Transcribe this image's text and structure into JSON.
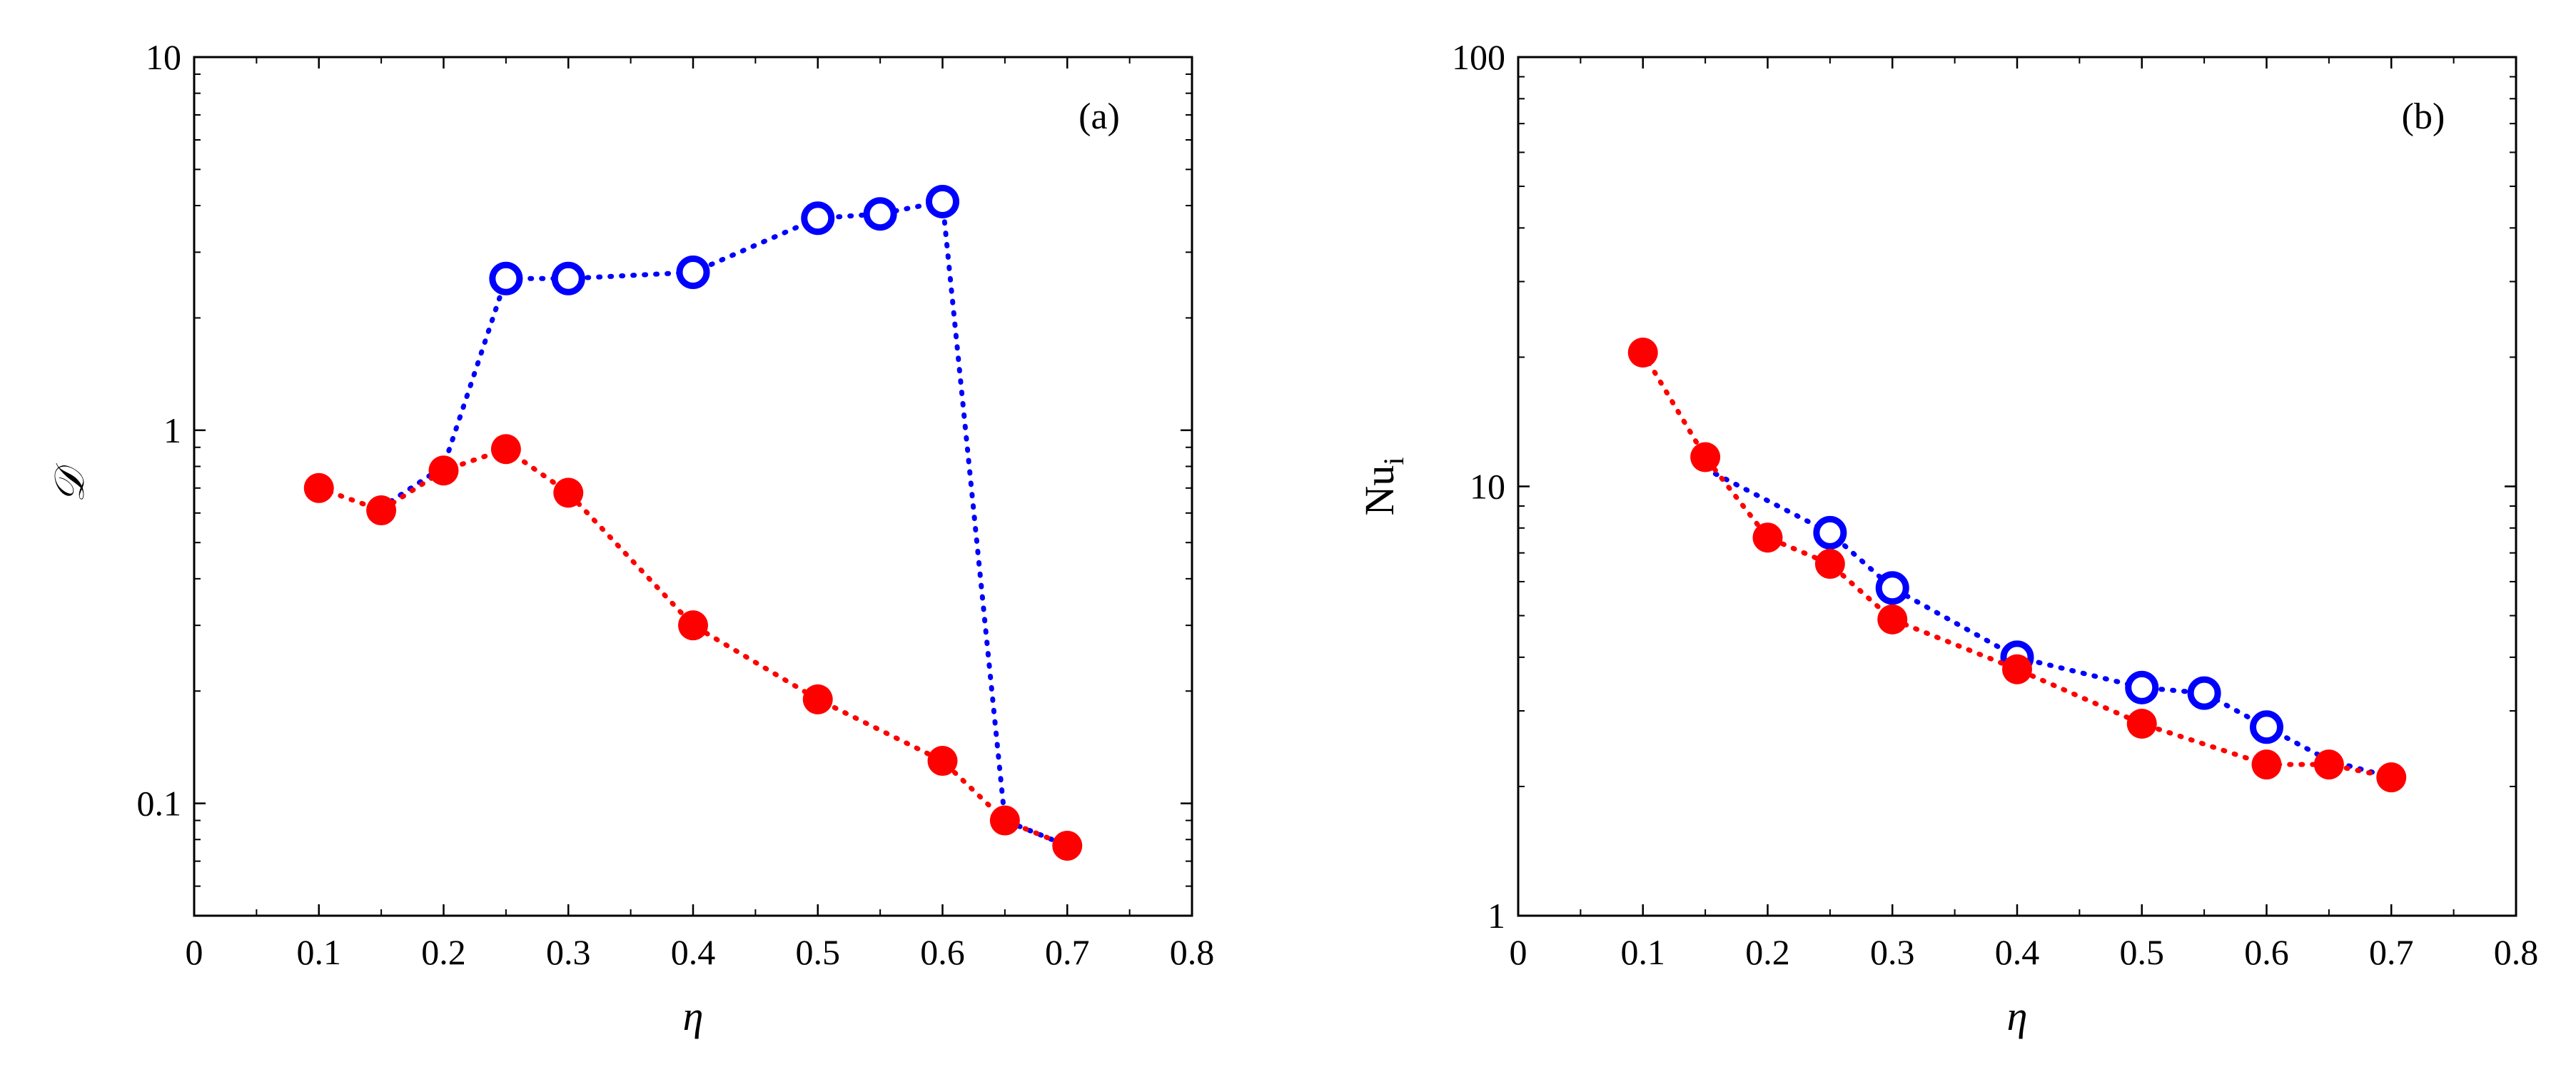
{
  "colors": {
    "blue": "#0000ff",
    "red": "#ff0000",
    "axis": "#000000"
  },
  "chart_data": [
    {
      "type": "line",
      "panel_label": "(a)",
      "ylabel": "𝒟",
      "ylabel_style": "script",
      "xlabel": "η",
      "xscale": "linear",
      "yscale": "log",
      "xlim": [
        0,
        0.8
      ],
      "ylim": [
        0.05,
        10
      ],
      "xticks": [
        {
          "value": 0,
          "label": "0"
        },
        {
          "value": 0.1,
          "label": "0.1"
        },
        {
          "value": 0.2,
          "label": "0.2"
        },
        {
          "value": 0.3,
          "label": "0.3"
        },
        {
          "value": 0.4,
          "label": "0.4"
        },
        {
          "value": 0.5,
          "label": "0.5"
        },
        {
          "value": 0.6,
          "label": "0.6"
        },
        {
          "value": 0.7,
          "label": "0.7"
        },
        {
          "value": 0.8,
          "label": "0.8"
        }
      ],
      "yticks": [
        {
          "value": 0.1,
          "label": "0.1"
        },
        {
          "value": 1,
          "label": "1"
        },
        {
          "value": 10,
          "label": "10"
        }
      ],
      "grid": false,
      "series": [
        {
          "name": "blue-open-circles",
          "color": "#0000ff",
          "marker": "open-circle",
          "line": "dotted",
          "points": [
            [
              0.15,
              0.62
            ],
            [
              0.2,
              0.8
            ],
            [
              0.25,
              2.55
            ],
            [
              0.3,
              2.55
            ],
            [
              0.4,
              2.65
            ],
            [
              0.5,
              3.7
            ],
            [
              0.55,
              3.8
            ],
            [
              0.6,
              4.1
            ],
            [
              0.65,
              0.09
            ],
            [
              0.7,
              0.077
            ]
          ],
          "marker_indices": [
            2,
            3,
            4,
            5,
            6,
            7
          ]
        },
        {
          "name": "red-filled-circles",
          "color": "#ff0000",
          "marker": "filled-circle",
          "line": "dotted",
          "points": [
            [
              0.1,
              0.7
            ],
            [
              0.15,
              0.61
            ],
            [
              0.2,
              0.78
            ],
            [
              0.25,
              0.89
            ],
            [
              0.3,
              0.68
            ],
            [
              0.4,
              0.3
            ],
            [
              0.5,
              0.19
            ],
            [
              0.6,
              0.13
            ],
            [
              0.65,
              0.09
            ],
            [
              0.7,
              0.077
            ]
          ],
          "marker_indices": [
            0,
            1,
            2,
            3,
            4,
            5,
            6,
            7,
            8,
            9
          ]
        }
      ]
    },
    {
      "type": "line",
      "panel_label": "(b)",
      "ylabel": "Nu",
      "ylabel_sub": "i",
      "xlabel": "η",
      "xscale": "linear",
      "yscale": "log",
      "xlim": [
        0,
        0.8
      ],
      "ylim": [
        1,
        100
      ],
      "xticks": [
        {
          "value": 0,
          "label": "0"
        },
        {
          "value": 0.1,
          "label": "0.1"
        },
        {
          "value": 0.2,
          "label": "0.2"
        },
        {
          "value": 0.3,
          "label": "0.3"
        },
        {
          "value": 0.4,
          "label": "0.4"
        },
        {
          "value": 0.5,
          "label": "0.5"
        },
        {
          "value": 0.6,
          "label": "0.6"
        },
        {
          "value": 0.7,
          "label": "0.7"
        },
        {
          "value": 0.8,
          "label": "0.8"
        }
      ],
      "yticks": [
        {
          "value": 1,
          "label": "1"
        },
        {
          "value": 10,
          "label": "10"
        },
        {
          "value": 100,
          "label": "100"
        }
      ],
      "grid": false,
      "series": [
        {
          "name": "blue-open-circles",
          "color": "#0000ff",
          "marker": "open-circle",
          "line": "dotted",
          "points": [
            [
              0.15,
              11.0
            ],
            [
              0.25,
              7.8
            ],
            [
              0.3,
              5.8
            ],
            [
              0.4,
              4.0
            ],
            [
              0.5,
              3.4
            ],
            [
              0.55,
              3.3
            ],
            [
              0.6,
              2.75
            ],
            [
              0.65,
              2.3
            ],
            [
              0.7,
              2.1
            ]
          ],
          "marker_indices": [
            1,
            2,
            3,
            4,
            5,
            6
          ]
        },
        {
          "name": "red-filled-circles",
          "color": "#ff0000",
          "marker": "filled-circle",
          "line": "dotted",
          "points": [
            [
              0.1,
              20.5
            ],
            [
              0.15,
              11.7
            ],
            [
              0.2,
              7.6
            ],
            [
              0.25,
              6.6
            ],
            [
              0.3,
              4.9
            ],
            [
              0.4,
              3.75
            ],
            [
              0.5,
              2.8
            ],
            [
              0.6,
              2.25
            ],
            [
              0.65,
              2.25
            ],
            [
              0.7,
              2.1
            ]
          ],
          "marker_indices": [
            0,
            1,
            2,
            3,
            4,
            5,
            6,
            7,
            8,
            9
          ]
        }
      ]
    }
  ]
}
